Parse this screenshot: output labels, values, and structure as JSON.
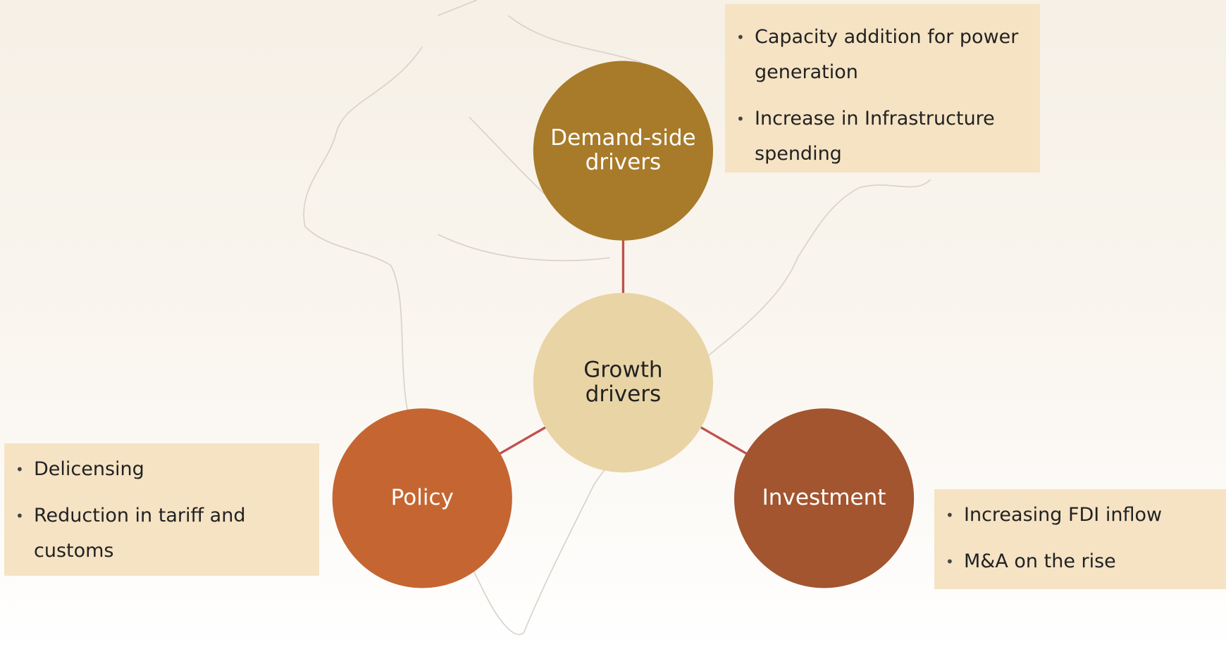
{
  "nodes": [
    {
      "label": [
        "Growth",
        "drivers"
      ]
    },
    {
      "label": [
        "Demand-side",
        "drivers"
      ],
      "bullets": [
        "Capacity addition for power generation",
        "Increase in Infrastructure spending"
      ]
    },
    {
      "label": [
        "Policy"
      ],
      "bullets": [
        "Delicensing",
        "Reduction in tariff and customs"
      ]
    },
    {
      "label": [
        "Investment"
      ],
      "bullets": [
        "Increasing FDI inflow",
        "M&A on the rise"
      ]
    }
  ]
}
